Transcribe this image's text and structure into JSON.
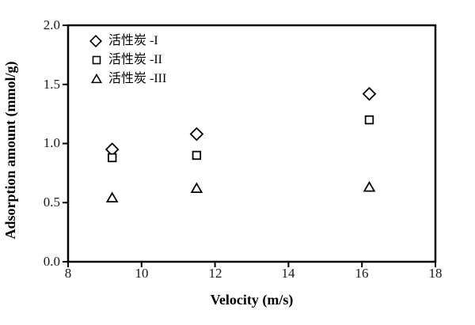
{
  "chart_data": {
    "type": "scatter",
    "xlabel": "Velocity (m/s)",
    "ylabel": "Adsorption amount (mmol/g)",
    "xlim": [
      8,
      18
    ],
    "ylim": [
      0.0,
      2.0
    ],
    "xtick_labels": [
      "8",
      "10",
      "12",
      "14",
      "16",
      "18"
    ],
    "ytick_labels": [
      "2.0",
      "1.5",
      "1.0",
      "0.5",
      "0.0"
    ],
    "grid": false,
    "legend_position": "upper-left-inside",
    "frame_color": "#000000",
    "marker_stroke": "#000000",
    "marker_fill": "#ffffff",
    "series": [
      {
        "name": "活性炭 -I",
        "marker": "diamond",
        "x": [
          9.2,
          11.5,
          16.2
        ],
        "y": [
          0.95,
          1.08,
          1.42
        ]
      },
      {
        "name": "活性炭 -II",
        "marker": "square",
        "x": [
          9.2,
          11.5,
          16.2
        ],
        "y": [
          0.88,
          0.9,
          1.2
        ]
      },
      {
        "name": "活性炭 -III",
        "marker": "triangle",
        "x": [
          9.2,
          11.5,
          16.2
        ],
        "y": [
          0.54,
          0.62,
          0.63
        ]
      }
    ]
  }
}
